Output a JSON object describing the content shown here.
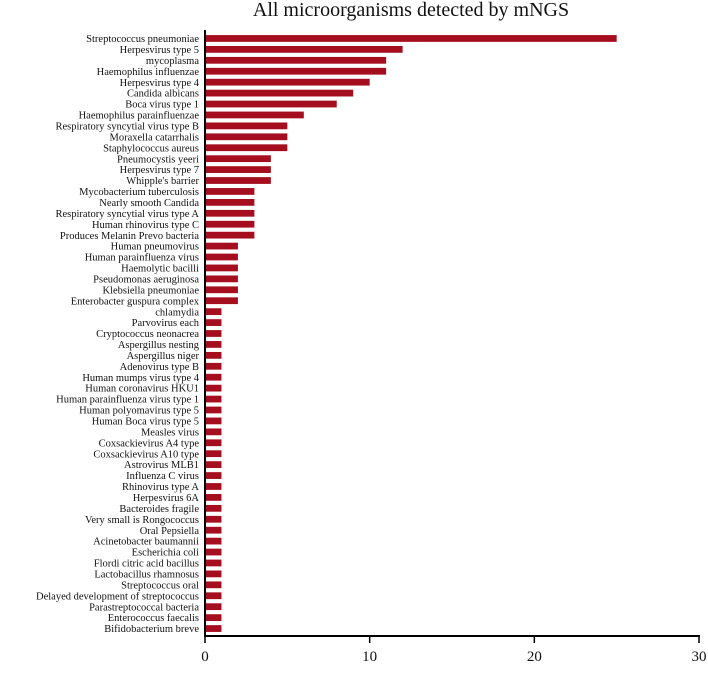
{
  "chart_data": {
    "type": "bar",
    "orientation": "horizontal",
    "title": "All microorganisms detected by mNGS",
    "xlabel": "",
    "ylabel": "",
    "xlim": [
      0,
      30
    ],
    "x_ticks": [
      0,
      10,
      20,
      30
    ],
    "grid": false,
    "bar_color": "#a50e1e",
    "categories": [
      "Streptococcus pneumoniae",
      "Herpesvirus type 5",
      "mycoplasma",
      "Haemophilus influenzae",
      "Herpesvirus type 4",
      "Candida albicans",
      "Boca virus type 1",
      "Haemophilus parainfluenzae",
      "Respiratory syncytial virus type B",
      "Moraxella catarrhalis",
      "Staphylococcus aureus",
      "Pneumocystis yeeri",
      "Herpesvirus type 7",
      "Whipple's barrier",
      "Mycobacterium tuberculosis",
      "Nearly smooth Candida",
      "Respiratory syncytial virus type A",
      "Human rhinovirus type C",
      "Produces Melanin Prevo bacteria",
      "Human pneumovirus",
      "Human parainfluenza virus",
      "Haemolytic bacilli",
      "Pseudomonas aeruginosa",
      "Klebsiella pneumoniae",
      "Enterobacter guspura complex",
      "chlamydia",
      "Parvovirus each",
      "Cryptococcus neonacrea",
      "Aspergillus nesting",
      "Aspergillus niger",
      "Adenovirus type B",
      "Human mumps virus type 4",
      "Human coronavirus HKU1",
      "Human parainfluenza virus type 1",
      "Human polyomavirus type 5",
      "Human Boca virus type 5",
      "Measles virus",
      "Coxsackievirus A4 type",
      "Coxsackievirus A10 type",
      "Astrovirus MLB1",
      "Influenza C virus",
      "Rhinovirus type A",
      "Herpesvirus 6A",
      "Bacteroides fragile",
      "Very small is Rongococcus",
      "Oral Pepsiella",
      "Acinetobacter baumannii",
      "Escherichia coli",
      "Flordi citric acid bacillus",
      "Lactobacillus rhamnosus",
      "Streptococcus oral",
      "Delayed development of streptococcus",
      "Parastreptococcal bacteria",
      "Enterococcus faecalis",
      "Bifidobacterium breve"
    ],
    "values": [
      25,
      12,
      11,
      11,
      10,
      9,
      8,
      6,
      5,
      5,
      5,
      4,
      4,
      4,
      3,
      3,
      3,
      3,
      3,
      2,
      2,
      2,
      2,
      2,
      2,
      1,
      1,
      1,
      1,
      1,
      1,
      1,
      1,
      1,
      1,
      1,
      1,
      1,
      1,
      1,
      1,
      1,
      1,
      1,
      1,
      1,
      1,
      1,
      1,
      1,
      1,
      1,
      1,
      1,
      1
    ]
  }
}
